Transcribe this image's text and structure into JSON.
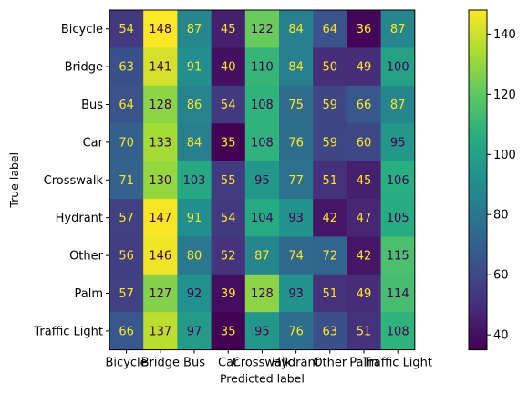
{
  "chart_data": {
    "type": "heatmap",
    "xlabel": "Predicted label",
    "ylabel": "True label",
    "row_labels": [
      "Bicycle",
      "Bridge",
      "Bus",
      "Car",
      "Crosswalk",
      "Hydrant",
      "Other",
      "Palm",
      "Traffic Light"
    ],
    "col_labels": [
      "Bicycle",
      "Bridge",
      "Bus",
      "Car",
      "Crosswalk",
      "Hydrant",
      "Other",
      "Palm",
      "Traffic Light"
    ],
    "values": [
      [
        54,
        148,
        87,
        45,
        122,
        84,
        64,
        36,
        87
      ],
      [
        63,
        141,
        91,
        40,
        110,
        84,
        50,
        49,
        100
      ],
      [
        64,
        128,
        86,
        54,
        108,
        75,
        59,
        66,
        87
      ],
      [
        70,
        133,
        84,
        35,
        108,
        76,
        59,
        60,
        95
      ],
      [
        71,
        130,
        103,
        55,
        95,
        77,
        51,
        45,
        106
      ],
      [
        57,
        147,
        91,
        54,
        104,
        93,
        42,
        47,
        105
      ],
      [
        56,
        146,
        80,
        52,
        87,
        74,
        72,
        42,
        115
      ],
      [
        57,
        127,
        92,
        39,
        128,
        93,
        51,
        49,
        114
      ],
      [
        66,
        137,
        97,
        35,
        95,
        76,
        63,
        51,
        108
      ]
    ],
    "colormap": "viridis",
    "vmin": 35,
    "vmax": 148,
    "colorbar_ticks": [
      40,
      60,
      80,
      100,
      120,
      140
    ]
  }
}
